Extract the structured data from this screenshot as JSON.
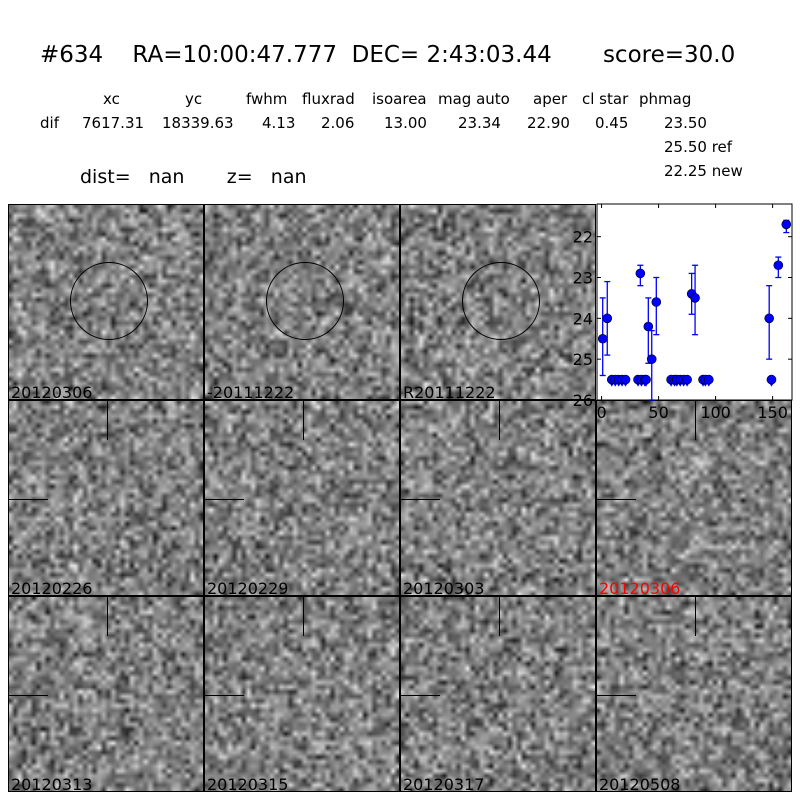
{
  "header": {
    "id": "#634",
    "ra": "RA=10:00:47.777",
    "dec": "DEC= 2:43:03.44",
    "score": "score=30.0"
  },
  "table": {
    "columns": [
      "xc",
      "yc",
      "fwhm",
      "fluxrad",
      "isoarea",
      "mag auto",
      "aper",
      "cl star",
      "phmag"
    ],
    "row_label": "dif",
    "values": [
      "7617.31",
      "18339.63",
      "4.13",
      "2.06",
      "13.00",
      "23.34",
      "22.90",
      "0.45",
      "23.50"
    ],
    "ref": "25.50 ref",
    "new": "22.25 new"
  },
  "dist": {
    "dist_label": "dist=",
    "dist_value": "nan",
    "z_label": "z=",
    "z_value": "nan"
  },
  "stamps": [
    {
      "label": "20120306",
      "marker": "circle"
    },
    {
      "label": "-20111222",
      "marker": "circle"
    },
    {
      "label": "R20111222",
      "marker": "circle"
    },
    {
      "label": "20120226",
      "marker": "cross"
    },
    {
      "label": "20120229",
      "marker": "cross"
    },
    {
      "label": "20120303",
      "marker": "cross"
    },
    {
      "label": "20120306",
      "marker": "cross",
      "highlight": "#ff0000"
    },
    {
      "label": "20120313",
      "marker": "cross"
    },
    {
      "label": "20120315",
      "marker": "cross"
    },
    {
      "label": "20120317",
      "marker": "cross"
    },
    {
      "label": "20120508",
      "marker": "cross"
    }
  ],
  "chart_data": {
    "type": "scatter",
    "title": "",
    "xlabel": "",
    "ylabel": "",
    "xlim": [
      -4,
      167
    ],
    "ylim": [
      26,
      21.2
    ],
    "y_inverted": true,
    "xticks": [
      "0",
      "50",
      "100",
      "150"
    ],
    "xtick_values": [
      0,
      50,
      100,
      150
    ],
    "yticks": [
      "22",
      "23",
      "24",
      "25",
      "26"
    ],
    "ytick_values": [
      22,
      23,
      24,
      25,
      26
    ],
    "color": "#0000ff",
    "grid": false,
    "detections": [
      {
        "x": 1,
        "y": 24.5,
        "lo": 23.5,
        "hi": 25.4
      },
      {
        "x": 5,
        "y": 24.0,
        "lo": 23.1,
        "hi": 24.9
      },
      {
        "x": 34,
        "y": 22.9,
        "lo": 22.7,
        "hi": 23.2
      },
      {
        "x": 41,
        "y": 24.2,
        "lo": 23.5,
        "hi": 25.1
      },
      {
        "x": 44,
        "y": 25.0,
        "lo": 24.3,
        "hi": 26.0
      },
      {
        "x": 48,
        "y": 23.6,
        "lo": 23.0,
        "hi": 24.4
      },
      {
        "x": 79,
        "y": 23.4,
        "lo": 22.9,
        "hi": 23.9
      },
      {
        "x": 82,
        "y": 23.5,
        "lo": 22.7,
        "hi": 24.4
      },
      {
        "x": 147,
        "y": 24.0,
        "lo": 23.2,
        "hi": 25.0
      },
      {
        "x": 155,
        "y": 22.7,
        "lo": 22.5,
        "hi": 23.0
      },
      {
        "x": 162,
        "y": 21.7,
        "lo": 21.6,
        "hi": 21.9
      }
    ],
    "upper_limits": {
      "y": 25.5,
      "x": [
        9,
        12,
        15,
        18,
        21,
        32,
        35,
        38,
        39,
        61,
        64,
        66,
        69,
        72,
        75,
        89,
        91,
        94,
        149
      ]
    }
  }
}
